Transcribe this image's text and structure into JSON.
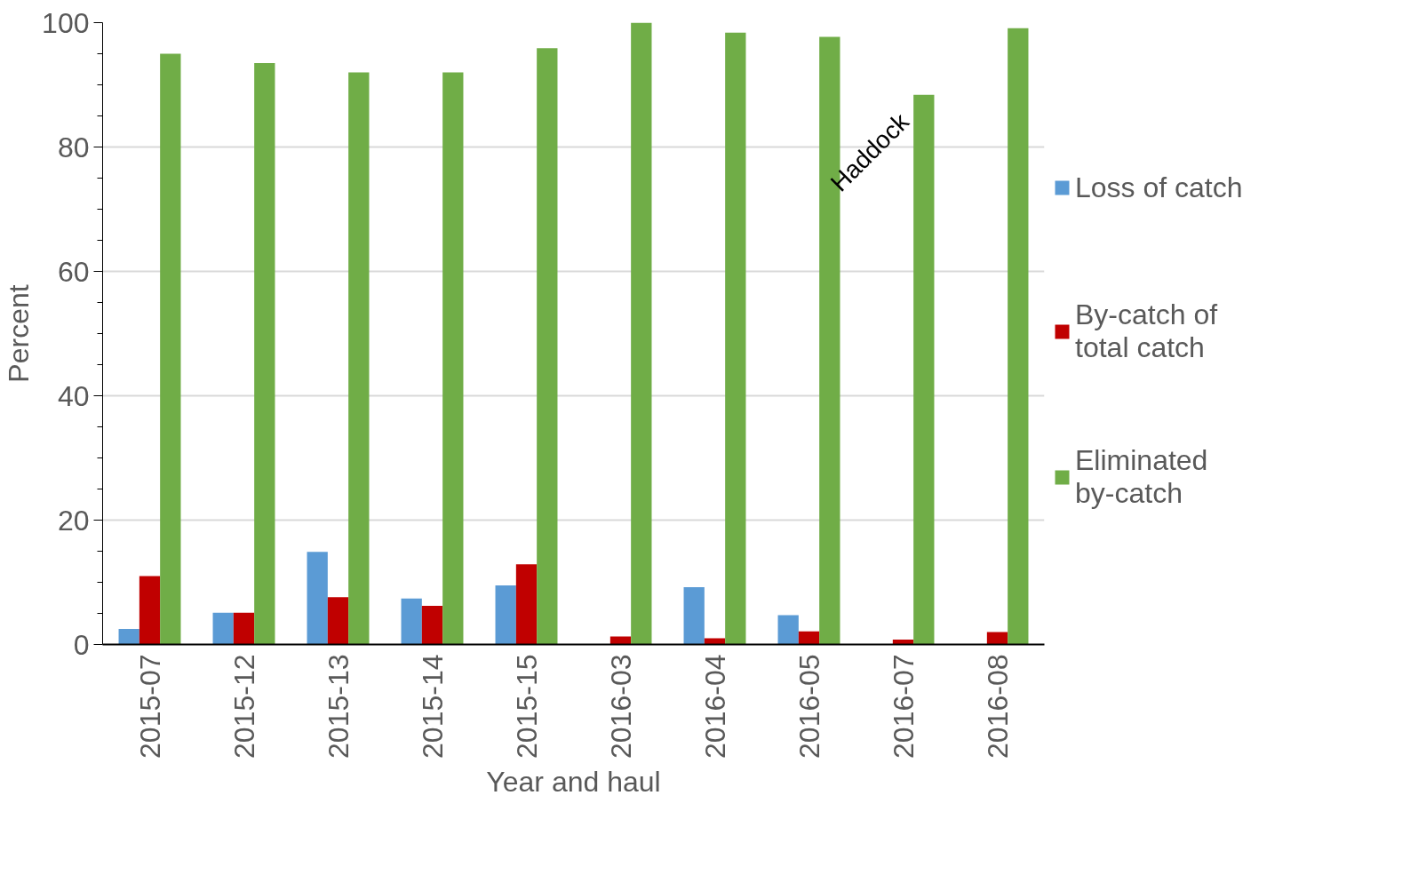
{
  "chart_data": {
    "type": "bar",
    "xlabel": "Year and haul",
    "ylabel": "Percent",
    "categories": [
      "2015-07",
      "2015-12",
      "2015-13",
      "2015-14",
      "2015-15",
      "2016-03",
      "2016-04",
      "2016-05",
      "2016-07",
      "2016-08"
    ],
    "series": [
      {
        "name": "Loss of catch",
        "color": "#5b9bd5",
        "values": [
          2.5,
          5.1,
          14.9,
          7.4,
          9.5,
          0,
          9.2,
          4.7,
          0,
          0
        ]
      },
      {
        "name": "By-catch of total catch",
        "color": "#c00000",
        "values": [
          11,
          5.1,
          7.6,
          6.2,
          12.9,
          1.3,
          1,
          2.1,
          0.8,
          2
        ]
      },
      {
        "name": "Eliminated by-catch",
        "color": "#70ad47",
        "values": [
          95,
          93.5,
          92,
          92,
          95.9,
          100,
          98.4,
          97.7,
          88.4,
          99.1
        ]
      }
    ],
    "ylim": [
      0,
      100
    ],
    "yticks": [
      0,
      {
        "value": 5,
        "label": null
      },
      {
        "value": 10,
        "label": null
      },
      {
        "value": 15,
        "label": null
      },
      20,
      {
        "value": 25,
        "label": null
      },
      {
        "value": 30,
        "label": null
      },
      {
        "value": 35,
        "label": null
      },
      40,
      {
        "value": 45,
        "label": null
      },
      {
        "value": 50,
        "label": null
      },
      {
        "value": 55,
        "label": null
      },
      60,
      {
        "value": 65,
        "label": null
      },
      {
        "value": 70,
        "label": null
      },
      {
        "value": 75,
        "label": null
      },
      80,
      {
        "value": 85,
        "label": null
      },
      {
        "value": 90,
        "label": null
      },
      {
        "value": 95,
        "label": null
      },
      100
    ],
    "grid": "y",
    "legend": "right",
    "annotations": [
      "Haddock"
    ]
  }
}
